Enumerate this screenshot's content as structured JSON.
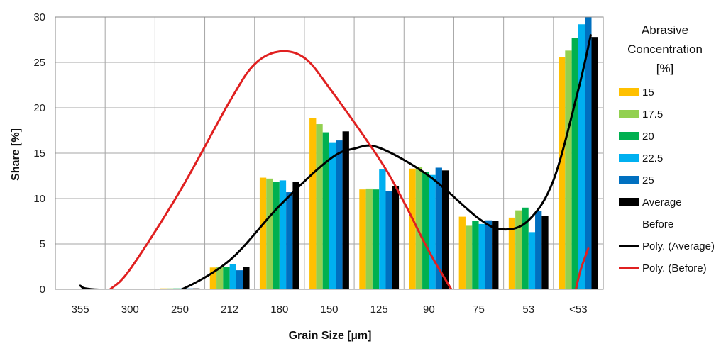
{
  "chart_data": {
    "type": "bar",
    "title": "",
    "xlabel": "Grain Size  [µm]",
    "ylabel": "Share  [%]",
    "ylim": [
      0,
      30
    ],
    "yticks": [
      0,
      5,
      10,
      15,
      20,
      25,
      30
    ],
    "grid": true,
    "legend_position": "right",
    "categories": [
      "355",
      "300",
      "250",
      "212",
      "180",
      "150",
      "125",
      "90",
      "75",
      "53",
      "<53"
    ],
    "series": [
      {
        "name": "15",
        "color": "#FFC000",
        "values": [
          0,
          0,
          0.1,
          2.4,
          12.3,
          18.9,
          11.0,
          13.3,
          8.0,
          7.9,
          25.6
        ]
      },
      {
        "name": "17.5",
        "color": "#92D050",
        "values": [
          0,
          0,
          0.1,
          2.5,
          12.2,
          18.2,
          11.1,
          13.5,
          7.0,
          8.7,
          26.3
        ]
      },
      {
        "name": "20",
        "color": "#00B050",
        "values": [
          0,
          0,
          0.1,
          2.5,
          11.8,
          17.3,
          11.0,
          12.9,
          7.5,
          9.0,
          27.7
        ]
      },
      {
        "name": "22.5",
        "color": "#00B0F0",
        "values": [
          0,
          0,
          0.1,
          2.8,
          12.0,
          16.2,
          13.2,
          12.6,
          7.2,
          6.3,
          29.2
        ]
      },
      {
        "name": "25",
        "color": "#0070C0",
        "values": [
          0,
          0,
          0.1,
          2.1,
          10.7,
          16.4,
          10.8,
          13.4,
          7.6,
          8.6,
          30.0
        ]
      },
      {
        "name": "Average",
        "color": "#000000",
        "values": [
          0,
          0,
          0.1,
          2.5,
          11.8,
          17.4,
          11.4,
          13.1,
          7.5,
          8.1,
          27.8
        ]
      }
    ],
    "before_label": "Before",
    "trendlines": [
      {
        "name": "Poly. (Average)",
        "color": "#000000",
        "points": [
          [
            0,
            0.4
          ],
          [
            0.25,
            0
          ],
          [
            1.6,
            -0.2
          ],
          [
            2.0,
            -0.1
          ],
          [
            3.0,
            3.2
          ],
          [
            4.0,
            9.2
          ],
          [
            5.0,
            14.3
          ],
          [
            5.5,
            15.5
          ],
          [
            6.0,
            15.6
          ],
          [
            7.0,
            12.5
          ],
          [
            8.0,
            7.8
          ],
          [
            8.5,
            6.6
          ],
          [
            9.0,
            7.6
          ],
          [
            9.5,
            12.0
          ],
          [
            10.0,
            22.0
          ],
          [
            10.25,
            28.0
          ]
        ]
      },
      {
        "name": "Poly. (Before)",
        "color": "#E02020",
        "points": [
          [
            0.6,
            0
          ],
          [
            1.0,
            2.2
          ],
          [
            2.0,
            10.8
          ],
          [
            3.0,
            20.7
          ],
          [
            3.5,
            24.8
          ],
          [
            4.0,
            26.2
          ],
          [
            4.5,
            25.5
          ],
          [
            5.0,
            22.2
          ],
          [
            6.0,
            14.4
          ],
          [
            6.5,
            9.6
          ],
          [
            7.0,
            4.2
          ],
          [
            7.45,
            0
          ]
        ]
      },
      {
        "name": "Poly. (Before) right",
        "color": "#E02020",
        "legend": false,
        "points": [
          [
            9.95,
            0
          ],
          [
            10.05,
            2.2
          ],
          [
            10.2,
            4.5
          ]
        ]
      }
    ]
  },
  "legend": {
    "title_lines": [
      "Abrasive",
      "Concentration",
      "[%]"
    ]
  }
}
